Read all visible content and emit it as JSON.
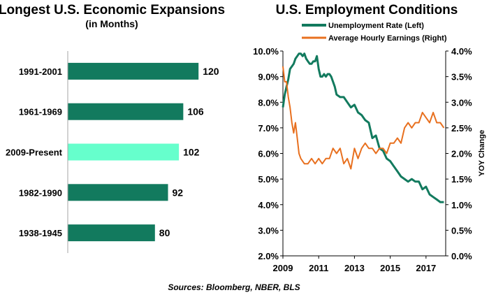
{
  "colors": {
    "bar_default": "#127a5e",
    "bar_highlight": "#66ffcc",
    "unemployment_line": "#127a5e",
    "earnings_line": "#e8701f",
    "axis": "#000000",
    "axis_light": "#a6a6a6"
  },
  "chart_data": [
    {
      "type": "bar",
      "orientation": "horizontal",
      "title": "Longest U.S. Economic Expansions",
      "subtitle": "(in Months)",
      "categories": [
        "1991-2001",
        "1961-1969",
        "2009-Present",
        "1982-1990",
        "1938-1945"
      ],
      "values": [
        120,
        106,
        102,
        92,
        80
      ],
      "value_labels": [
        "120",
        "106",
        "102",
        "92",
        "80"
      ],
      "highlight_index": 2,
      "xlim": [
        0,
        140
      ]
    },
    {
      "type": "line",
      "title": "U.S. Employment Conditions",
      "legend": [
        "Unemployment Rate (Left)",
        "Average Hourly Earnings (Right)"
      ],
      "xlim": [
        2009,
        2018.1
      ],
      "x_ticks": [
        2009,
        2011,
        2013,
        2015,
        2017
      ],
      "x_tick_labels": [
        "2009",
        "2011",
        "2013",
        "2015",
        "2017"
      ],
      "ylim_left": [
        2.0,
        10.0
      ],
      "y_left_ticks": [
        2,
        3,
        4,
        5,
        6,
        7,
        8,
        9,
        10
      ],
      "y_left_tick_labels": [
        "2.0%",
        "3.0%",
        "4.0%",
        "5.0%",
        "6.0%",
        "7.0%",
        "8.0%",
        "9.0%",
        "10.0%"
      ],
      "ylim_right": [
        0.0,
        4.0
      ],
      "y_right_ticks": [
        0,
        0.5,
        1,
        1.5,
        2,
        2.5,
        3,
        3.5,
        4
      ],
      "y_right_tick_labels": [
        "0.0%",
        "0.5%",
        "1.0%",
        "1.5%",
        "2.0%",
        "2.5%",
        "3.0%",
        "3.5%",
        "4.0%"
      ],
      "ylabel_right": "YOY Change",
      "series": [
        {
          "name": "Unemployment Rate (Left)",
          "axis": "left",
          "x": [
            2009.0,
            2009.1,
            2009.2,
            2009.3,
            2009.4,
            2009.5,
            2009.6,
            2009.7,
            2009.8,
            2009.9,
            2010.0,
            2010.1,
            2010.2,
            2010.3,
            2010.4,
            2010.5,
            2010.6,
            2010.7,
            2010.8,
            2010.9,
            2011.0,
            2011.1,
            2011.2,
            2011.3,
            2011.4,
            2011.5,
            2011.6,
            2011.7,
            2011.8,
            2011.9,
            2012.0,
            2012.2,
            2012.4,
            2012.6,
            2012.8,
            2013.0,
            2013.2,
            2013.4,
            2013.6,
            2013.8,
            2014.0,
            2014.2,
            2014.4,
            2014.6,
            2014.8,
            2015.0,
            2015.2,
            2015.4,
            2015.6,
            2015.8,
            2016.0,
            2016.2,
            2016.4,
            2016.6,
            2016.8,
            2017.0,
            2017.2,
            2017.4,
            2017.6,
            2017.8,
            2018.0
          ],
          "values": [
            7.8,
            8.3,
            8.6,
            8.9,
            9.3,
            9.4,
            9.5,
            9.7,
            9.8,
            9.9,
            9.9,
            9.8,
            9.9,
            9.7,
            9.6,
            9.5,
            9.5,
            9.6,
            9.6,
            9.8,
            9.3,
            9.0,
            9.0,
            9.1,
            9.0,
            9.1,
            9.1,
            9.0,
            8.8,
            8.6,
            8.3,
            8.2,
            8.2,
            8.0,
            7.8,
            7.9,
            7.6,
            7.5,
            7.3,
            7.2,
            6.6,
            6.7,
            6.2,
            6.1,
            5.8,
            5.7,
            5.5,
            5.3,
            5.1,
            5.0,
            4.9,
            5.0,
            4.9,
            4.9,
            4.6,
            4.7,
            4.4,
            4.3,
            4.2,
            4.1,
            4.1
          ]
        },
        {
          "name": "Average Hourly Earnings (Right)",
          "axis": "right",
          "x": [
            2009.0,
            2009.1,
            2009.2,
            2009.3,
            2009.4,
            2009.5,
            2009.6,
            2009.7,
            2009.8,
            2009.9,
            2010.0,
            2010.2,
            2010.4,
            2010.6,
            2010.8,
            2011.0,
            2011.2,
            2011.4,
            2011.6,
            2011.8,
            2012.0,
            2012.2,
            2012.4,
            2012.6,
            2012.8,
            2013.0,
            2013.2,
            2013.4,
            2013.6,
            2013.8,
            2014.0,
            2014.2,
            2014.4,
            2014.6,
            2014.8,
            2015.0,
            2015.2,
            2015.4,
            2015.6,
            2015.8,
            2016.0,
            2016.2,
            2016.4,
            2016.6,
            2016.8,
            2017.0,
            2017.2,
            2017.4,
            2017.6,
            2017.8,
            2018.0
          ],
          "values": [
            3.7,
            3.4,
            3.4,
            3.1,
            2.9,
            2.6,
            2.4,
            2.6,
            2.3,
            2.0,
            1.9,
            1.8,
            1.8,
            1.9,
            1.8,
            1.9,
            1.8,
            1.9,
            1.9,
            2.1,
            2.0,
            2.1,
            1.8,
            1.9,
            1.7,
            2.1,
            1.9,
            2.1,
            2.2,
            2.1,
            2.1,
            2.0,
            2.1,
            2.1,
            2.0,
            2.2,
            2.2,
            2.3,
            2.2,
            2.5,
            2.6,
            2.5,
            2.6,
            2.6,
            2.8,
            2.7,
            2.6,
            2.8,
            2.6,
            2.6,
            2.5
          ]
        }
      ]
    }
  ],
  "footer": {
    "source": "Sources: Bloomberg, NBER, BLS"
  }
}
